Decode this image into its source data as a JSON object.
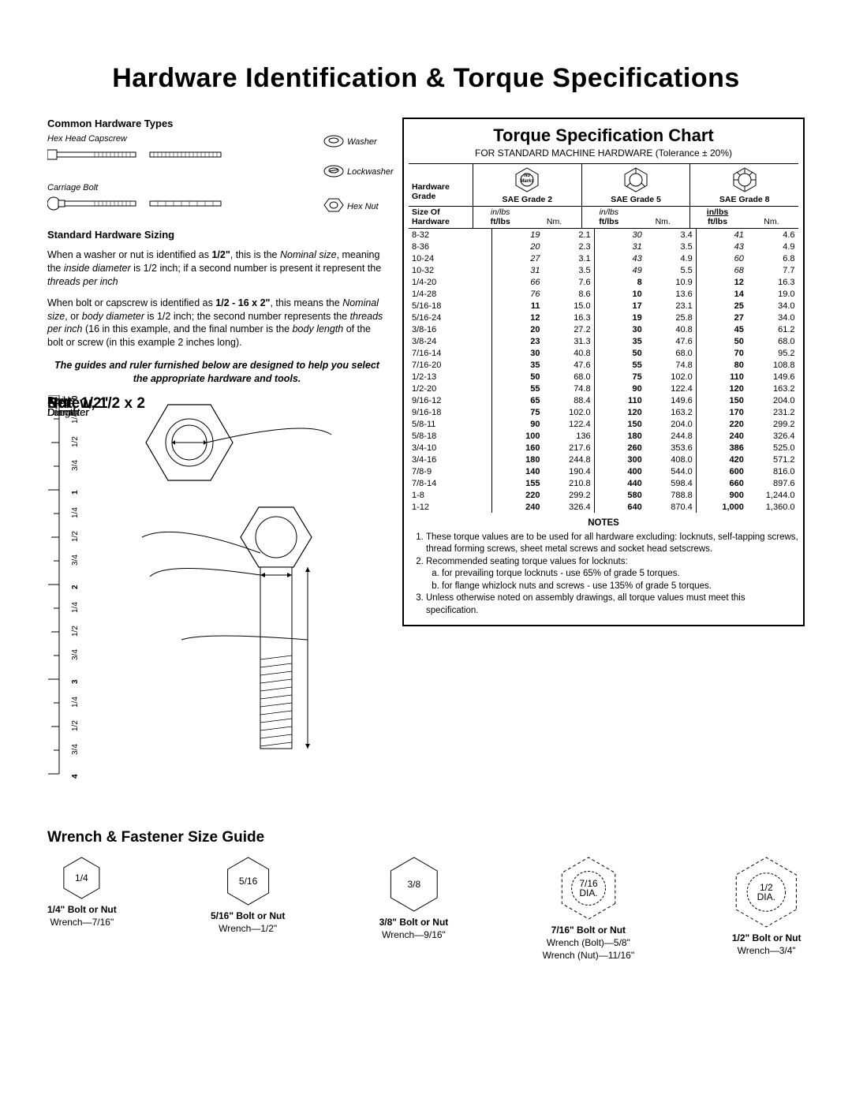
{
  "page": {
    "title": "Hardware Identification  &  Torque Specifications",
    "background_color": "#ffffff",
    "text_color": "#000000"
  },
  "hardware_types": {
    "heading": "Common Hardware Types",
    "labels": {
      "hex_capscrew": "Hex Head Capscrew",
      "carriage_bolt": "Carriage Bolt",
      "washer": "Washer",
      "lockwasher": "Lockwasher",
      "hex_nut": "Hex Nut"
    }
  },
  "sizing": {
    "heading": "Standard Hardware Sizing",
    "para1_html": "When a washer or nut is identified as <b>1/2\"</b>, this is the <i>Nominal size</i>, meaning the <i>inside diameter</i> is 1/2 inch; if a second number is present it represent the <i>threads per inch</i>",
    "para2_html": "When bolt or capscrew is identified as <b>1/2 - 16 x 2\"</b>, this means the <i>Nominal size</i>, or <i>body diameter</i> is 1/2 inch; the second number represents the <i>threads per inch</i> (16 in this example, and the final number is the <i>body length</i> of the bolt or screw (in this example 2 inches long).",
    "guide_note": "The guides and ruler furnished below are designed to help you select the appropriate hardware and tools."
  },
  "diagram": {
    "nut_label": "Nut, 1/2\"",
    "inside_dia": "Inside\nDiameter",
    "screw_label": "Screw, 1/2 x 2",
    "body_dia": "Body\nDiameter",
    "body_len": "Body\nLength",
    "ruler_major": [
      "0",
      "1",
      "2",
      "3",
      "4"
    ],
    "ruler_minor": [
      "1/4",
      "1/2",
      "3/4"
    ]
  },
  "torque": {
    "title": "Torque Specification Chart",
    "subtitle": "FOR STANDARD MACHINE HARDWARE (Tolerance ± 20%)",
    "grade_label": "Hardware\nGrade",
    "grades": [
      "SAE Grade 2",
      "SAE Grade 5",
      "SAE Grade 8"
    ],
    "no_marks": "No\nMarks",
    "size_label": "Size Of\nHardware",
    "unit_top": "in/lbs",
    "unit_bot": "ft/lbs",
    "unit_nm": "Nm.",
    "rows": [
      {
        "size": "8-32",
        "v": [
          {
            "a": "19",
            "b": "2.1",
            "it": true
          },
          {
            "a": "30",
            "b": "3.4",
            "it": true
          },
          {
            "a": "41",
            "b": "4.6",
            "it": true
          }
        ]
      },
      {
        "size": "8-36",
        "v": [
          {
            "a": "20",
            "b": "2.3",
            "it": true
          },
          {
            "a": "31",
            "b": "3.5",
            "it": true
          },
          {
            "a": "43",
            "b": "4.9",
            "it": true
          }
        ]
      },
      {
        "size": "10-24",
        "v": [
          {
            "a": "27",
            "b": "3.1",
            "it": true
          },
          {
            "a": "43",
            "b": "4.9",
            "it": true
          },
          {
            "a": "60",
            "b": "6.8",
            "it": true
          }
        ]
      },
      {
        "size": "10-32",
        "v": [
          {
            "a": "31",
            "b": "3.5",
            "it": true
          },
          {
            "a": "49",
            "b": "5.5",
            "it": true
          },
          {
            "a": "68",
            "b": "7.7",
            "it": true
          }
        ]
      },
      {
        "size": "1/4-20",
        "v": [
          {
            "a": "66",
            "b": "7.6",
            "it": true
          },
          {
            "a": "8",
            "b": "10.9",
            "bold": true
          },
          {
            "a": "12",
            "b": "16.3",
            "bold": true
          }
        ]
      },
      {
        "size": "1/4-28",
        "v": [
          {
            "a": "76",
            "b": "8.6",
            "it": true
          },
          {
            "a": "10",
            "b": "13.6",
            "bold": true
          },
          {
            "a": "14",
            "b": "19.0",
            "bold": true
          }
        ]
      },
      {
        "size": "5/16-18",
        "v": [
          {
            "a": "11",
            "b": "15.0",
            "bold": true
          },
          {
            "a": "17",
            "b": "23.1",
            "bold": true
          },
          {
            "a": "25",
            "b": "34.0",
            "bold": true
          }
        ]
      },
      {
        "size": "5/16-24",
        "v": [
          {
            "a": "12",
            "b": "16.3",
            "bold": true
          },
          {
            "a": "19",
            "b": "25.8",
            "bold": true
          },
          {
            "a": "27",
            "b": "34.0",
            "bold": true
          }
        ]
      },
      {
        "size": "3/8-16",
        "v": [
          {
            "a": "20",
            "b": "27.2",
            "bold": true
          },
          {
            "a": "30",
            "b": "40.8",
            "bold": true
          },
          {
            "a": "45",
            "b": "61.2",
            "bold": true
          }
        ]
      },
      {
        "size": "3/8-24",
        "v": [
          {
            "a": "23",
            "b": "31.3",
            "bold": true
          },
          {
            "a": "35",
            "b": "47.6",
            "bold": true
          },
          {
            "a": "50",
            "b": "68.0",
            "bold": true
          }
        ]
      },
      {
        "size": "7/16-14",
        "v": [
          {
            "a": "30",
            "b": "40.8",
            "bold": true
          },
          {
            "a": "50",
            "b": "68.0",
            "bold": true
          },
          {
            "a": "70",
            "b": "95.2",
            "bold": true
          }
        ]
      },
      {
        "size": "7/16-20",
        "v": [
          {
            "a": "35",
            "b": "47.6",
            "bold": true
          },
          {
            "a": "55",
            "b": "74.8",
            "bold": true
          },
          {
            "a": "80",
            "b": "108.8",
            "bold": true
          }
        ]
      },
      {
        "size": "1/2-13",
        "v": [
          {
            "a": "50",
            "b": "68.0",
            "bold": true
          },
          {
            "a": "75",
            "b": "102.0",
            "bold": true
          },
          {
            "a": "110",
            "b": "149.6",
            "bold": true
          }
        ]
      },
      {
        "size": "1/2-20",
        "v": [
          {
            "a": "55",
            "b": "74.8",
            "bold": true
          },
          {
            "a": "90",
            "b": "122.4",
            "bold": true
          },
          {
            "a": "120",
            "b": "163.2",
            "bold": true
          }
        ]
      },
      {
        "size": "9/16-12",
        "v": [
          {
            "a": "65",
            "b": "88.4",
            "bold": true
          },
          {
            "a": "110",
            "b": "149.6",
            "bold": true
          },
          {
            "a": "150",
            "b": "204.0",
            "bold": true
          }
        ]
      },
      {
        "size": "9/16-18",
        "v": [
          {
            "a": "75",
            "b": "102.0",
            "bold": true
          },
          {
            "a": "120",
            "b": "163.2",
            "bold": true
          },
          {
            "a": "170",
            "b": "231.2",
            "bold": true
          }
        ]
      },
      {
        "size": "5/8-11",
        "v": [
          {
            "a": "90",
            "b": "122.4",
            "bold": true
          },
          {
            "a": "150",
            "b": "204.0",
            "bold": true
          },
          {
            "a": "220",
            "b": "299.2",
            "bold": true
          }
        ]
      },
      {
        "size": "5/8-18",
        "v": [
          {
            "a": "100",
            "b": "136",
            "bold": true
          },
          {
            "a": "180",
            "b": "244.8",
            "bold": true
          },
          {
            "a": "240",
            "b": "326.4",
            "bold": true
          }
        ]
      },
      {
        "size": "3/4-10",
        "v": [
          {
            "a": "160",
            "b": "217.6",
            "bold": true
          },
          {
            "a": "260",
            "b": "353.6",
            "bold": true
          },
          {
            "a": "386",
            "b": "525.0",
            "bold": true
          }
        ]
      },
      {
        "size": "3/4-16",
        "v": [
          {
            "a": "180",
            "b": "244.8",
            "bold": true
          },
          {
            "a": "300",
            "b": "408.0",
            "bold": true
          },
          {
            "a": "420",
            "b": "571.2",
            "bold": true
          }
        ]
      },
      {
        "size": "7/8-9",
        "v": [
          {
            "a": "140",
            "b": "190.4",
            "bold": true
          },
          {
            "a": "400",
            "b": "544.0",
            "bold": true
          },
          {
            "a": "600",
            "b": "816.0",
            "bold": true
          }
        ]
      },
      {
        "size": "7/8-14",
        "v": [
          {
            "a": "155",
            "b": "210.8",
            "bold": true
          },
          {
            "a": "440",
            "b": "598.4",
            "bold": true
          },
          {
            "a": "660",
            "b": "897.6",
            "bold": true
          }
        ]
      },
      {
        "size": "1-8",
        "v": [
          {
            "a": "220",
            "b": "299.2",
            "bold": true
          },
          {
            "a": "580",
            "b": "788.8",
            "bold": true
          },
          {
            "a": "900",
            "b": "1,244.0",
            "bold": true
          }
        ]
      },
      {
        "size": "1-12",
        "v": [
          {
            "a": "240",
            "b": "326.4",
            "bold": true
          },
          {
            "a": "640",
            "b": "870.4",
            "bold": true
          },
          {
            "a": "1,000",
            "b": "1,360.0",
            "bold": true
          }
        ]
      }
    ],
    "notes": {
      "heading": "NOTES",
      "n1": "These torque values are to be used for all hardware excluding: locknuts, self-tapping screws, thread forming screws, sheet metal screws and socket head setscrews.",
      "n2": "Recommended seating torque values for locknuts:",
      "n2a": "for prevailing torque locknuts - use 65% of grade 5 torques.",
      "n2b": "for flange whizlock nuts and screws - use 135% of grade 5 torques.",
      "n3": "Unless otherwise noted on assembly drawings, all torque values must meet this specification."
    }
  },
  "wrench": {
    "title": "Wrench & Fastener Size Guide",
    "items": [
      {
        "hex_label": "1/4",
        "bolt": "1/4\" Bolt or Nut",
        "wrench": "Wrench—7/16\"",
        "dashed": false,
        "extra": null,
        "size": 56
      },
      {
        "hex_label": "5/16",
        "bolt": "5/16\" Bolt or Nut",
        "wrench": "Wrench—1/2\"",
        "dashed": false,
        "extra": null,
        "size": 64
      },
      {
        "hex_label": "3/8",
        "bolt": "3/8\" Bolt or Nut",
        "wrench": "Wrench—9/16\"",
        "dashed": false,
        "extra": null,
        "size": 72
      },
      {
        "hex_label": "7/16\nDIA.",
        "bolt": "7/16\" Bolt or Nut",
        "wrench": "Wrench (Bolt)—5/8\"",
        "dashed": true,
        "extra": "Wrench (Nut)—11/16\"",
        "size": 82
      },
      {
        "hex_label": "1/2\nDIA.",
        "bolt": "1/2\" Bolt or Nut",
        "wrench": "Wrench—3/4\"",
        "dashed": true,
        "extra": null,
        "size": 92
      }
    ]
  }
}
